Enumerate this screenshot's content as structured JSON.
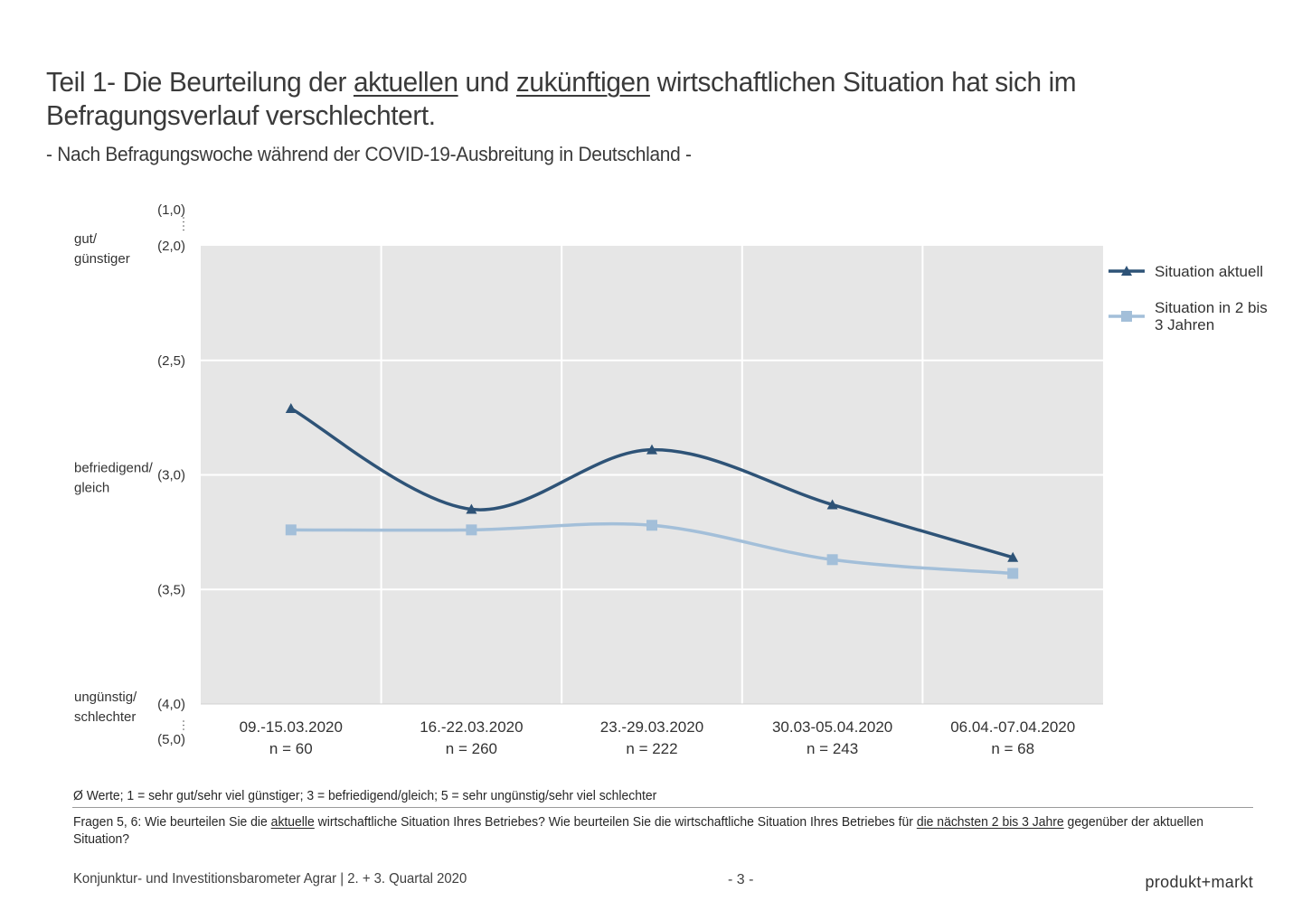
{
  "title": {
    "prefix": "Teil 1- Die Beurteilung der ",
    "emph1": "aktuellen",
    "mid": " und ",
    "emph2": "zukünftigen",
    "suffix": " wirtschaftlichen Situation hat sich im Befragungsverlauf verschlechtert."
  },
  "subtitle": "- Nach Befragungswoche während der COVID-19-Ausbreitung in Deutschland -",
  "chart_data": {
    "type": "line",
    "categories": [
      {
        "label": "09.-15.03.2020",
        "n": "n = 60"
      },
      {
        "label": "16.-22.03.2020",
        "n": "n = 260"
      },
      {
        "label": "23.-29.03.2020",
        "n": "n = 222"
      },
      {
        "label": "30.03-05.04.2020",
        "n": "n = 243"
      },
      {
        "label": "06.04.-07.04.2020",
        "n": "n = 68"
      }
    ],
    "series": [
      {
        "name": "Situation aktuell",
        "values": [
          2.71,
          3.15,
          2.89,
          3.13,
          3.36
        ],
        "color": "#2e5377",
        "marker": "triangle"
      },
      {
        "name": "Situation in 2 bis 3 Jahren",
        "values": [
          3.24,
          3.24,
          3.22,
          3.37,
          3.43
        ],
        "color": "#a3bfd9",
        "marker": "square"
      }
    ],
    "ylim": [
      2.0,
      4.0
    ],
    "y_inverted": true,
    "y_ticks": [
      {
        "value": 2.0,
        "label": "(2,0)"
      },
      {
        "value": 2.5,
        "label": "(2,5)"
      },
      {
        "value": 3.0,
        "label": "(3,0)"
      },
      {
        "value": 3.5,
        "label": "(3,5)"
      },
      {
        "value": 4.0,
        "label": "(4,0)"
      }
    ],
    "y_extra_top": "(1,0)",
    "y_extra_bottom": "(5,0)",
    "y_category_labels": [
      {
        "value": 2.0,
        "lines": [
          "gut/",
          "günstiger"
        ]
      },
      {
        "value": 3.0,
        "lines": [
          "befriedigend/",
          "gleich"
        ]
      },
      {
        "value": 4.0,
        "lines": [
          "ungünstig/",
          "schlechter"
        ]
      }
    ],
    "grid": true,
    "plot_background": "#e6e6e6",
    "legend_position": "right"
  },
  "footnote": "Ø Werte; 1 = sehr gut/sehr viel günstiger; 3 = befriedigend/gleich; 5 = sehr ungünstig/sehr viel schlechter",
  "question": {
    "p1": "Fragen 5, 6: Wie beurteilen Sie die ",
    "u1": "aktuelle",
    "p2": " wirtschaftliche Situation Ihres Betriebes? Wie beurteilen Sie die wirtschaftliche Situation Ihres Betriebes für ",
    "u2": "die nächsten 2 bis 3 Jahre",
    "p3": " gegenüber der aktuellen Situation?"
  },
  "footer": {
    "left": "Konjunktur- und Investitionsbarometer Agrar | 2. + 3. Quartal 2020",
    "page": "- 3 -",
    "brand": "produkt+markt"
  }
}
